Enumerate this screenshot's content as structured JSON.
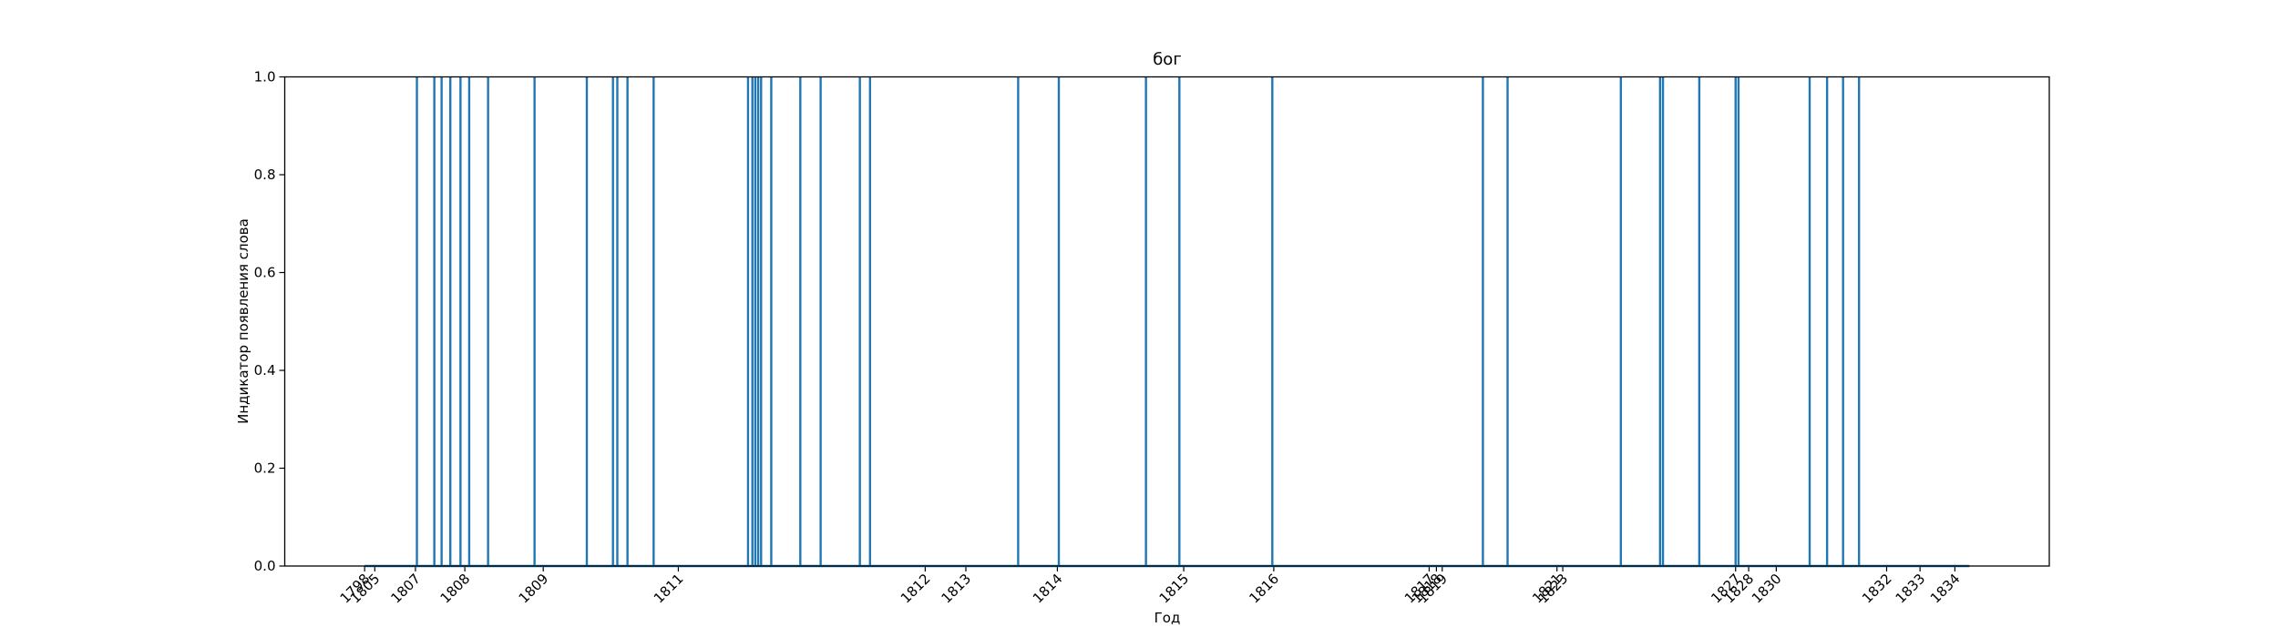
{
  "chart_data": {
    "type": "spike",
    "title": "бог",
    "xlabel": "Год",
    "ylabel": "Индикатор появления слова",
    "color": "#1f77b4",
    "x": [
      0,
      36,
      48,
      53,
      59,
      66,
      72,
      85,
      117,
      153,
      171,
      174,
      181,
      199,
      264,
      267,
      269,
      271,
      273,
      280,
      300,
      314,
      341,
      348,
      450,
      478,
      538,
      561,
      625,
      770,
      787,
      865,
      892,
      894,
      919,
      944,
      946,
      995,
      1007,
      1018,
      1029,
      1105
    ],
    "values": [
      0,
      1,
      1,
      1,
      1,
      1,
      1,
      1,
      1,
      1,
      1,
      1,
      1,
      1,
      1,
      1,
      1,
      1,
      1,
      1,
      1,
      1,
      1,
      1,
      1,
      1,
      1,
      1,
      1,
      1,
      1,
      1,
      1,
      1,
      1,
      1,
      1,
      1,
      1,
      1,
      1,
      0
    ],
    "xlim": [
      -55,
      1160
    ],
    "ylim": [
      0,
      1
    ],
    "xticks": [
      {
        "value": 0,
        "label": "1798"
      },
      {
        "value": 7,
        "label": "1805"
      },
      {
        "value": 35,
        "label": "1807"
      },
      {
        "value": 69,
        "label": "1808"
      },
      {
        "value": 123,
        "label": "1809"
      },
      {
        "value": 216,
        "label": "1811"
      },
      {
        "value": 386,
        "label": "1812"
      },
      {
        "value": 414,
        "label": "1813"
      },
      {
        "value": 477,
        "label": "1814"
      },
      {
        "value": 564,
        "label": "1815"
      },
      {
        "value": 626,
        "label": "1816"
      },
      {
        "value": 733,
        "label": "1817"
      },
      {
        "value": 738,
        "label": "1818"
      },
      {
        "value": 742,
        "label": "1819"
      },
      {
        "value": 821,
        "label": "1821"
      },
      {
        "value": 825,
        "label": "1823"
      },
      {
        "value": 944,
        "label": "1827"
      },
      {
        "value": 953,
        "label": "1828"
      },
      {
        "value": 972,
        "label": "1830"
      },
      {
        "value": 1048,
        "label": "1832"
      },
      {
        "value": 1071,
        "label": "1833"
      },
      {
        "value": 1095,
        "label": "1834"
      }
    ],
    "yticks": [
      {
        "value": 0,
        "label": "0.0"
      },
      {
        "value": 0.2,
        "label": "0.2"
      },
      {
        "value": 0.4,
        "label": "0.4"
      },
      {
        "value": 0.6,
        "label": "0.6"
      },
      {
        "value": 0.8,
        "label": "0.8"
      },
      {
        "value": 1,
        "label": "1.0"
      }
    ]
  }
}
